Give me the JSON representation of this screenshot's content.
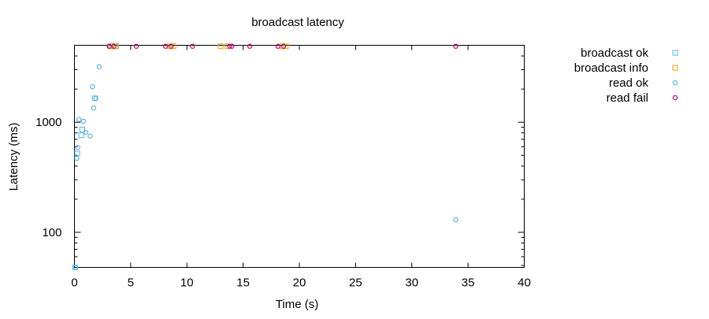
{
  "chart_data": {
    "type": "scatter",
    "title": "broadcast latency",
    "xlabel": "Time (s)",
    "ylabel": "Latency (ms)",
    "xlim": [
      0,
      40
    ],
    "ylim": [
      48,
      5000
    ],
    "yscale": "log",
    "xticks": [
      "0",
      "5",
      "10",
      "15",
      "20",
      "25",
      "30",
      "35",
      "40"
    ],
    "yticks": [
      "100",
      "1000"
    ],
    "grid": false,
    "legend_position": "top-right outside",
    "series": [
      {
        "name": "broadcast ok",
        "marker": "square",
        "color": "#56b4e9",
        "points": [
          [
            0.05,
            48
          ],
          [
            0.25,
            520
          ],
          [
            0.6,
            760
          ],
          [
            0.7,
            860
          ],
          [
            1.8,
            1650
          ],
          [
            3.3,
            4900
          ],
          [
            3.6,
            4900
          ]
        ]
      },
      {
        "name": "broadcast info",
        "marker": "square",
        "color": "#e69f00",
        "points": [
          [
            3.2,
            4900
          ],
          [
            3.7,
            4900
          ],
          [
            8.5,
            4900
          ],
          [
            8.8,
            4900
          ],
          [
            13.0,
            4900
          ],
          [
            13.6,
            4900
          ],
          [
            18.5,
            4900
          ],
          [
            18.8,
            4900
          ]
        ]
      },
      {
        "name": "read ok",
        "marker": "circle",
        "color": "#56b4e9",
        "points": [
          [
            0.1,
            48
          ],
          [
            0.2,
            470
          ],
          [
            0.3,
            590
          ],
          [
            0.4,
            1060
          ],
          [
            0.8,
            1020
          ],
          [
            1.0,
            810
          ],
          [
            1.4,
            750
          ],
          [
            1.6,
            2100
          ],
          [
            1.7,
            1350
          ],
          [
            1.9,
            1650
          ],
          [
            2.2,
            3200
          ],
          [
            33.9,
            130
          ]
        ]
      },
      {
        "name": "read fail",
        "marker": "circle",
        "color": "#cc0066",
        "points": [
          [
            3.1,
            4900
          ],
          [
            3.5,
            4900
          ],
          [
            5.5,
            4900
          ],
          [
            8.1,
            4900
          ],
          [
            8.6,
            4900
          ],
          [
            10.5,
            4900
          ],
          [
            13.8,
            4900
          ],
          [
            14.0,
            4900
          ],
          [
            15.6,
            4900
          ],
          [
            18.1,
            4900
          ],
          [
            18.6,
            4900
          ],
          [
            33.9,
            4900
          ]
        ]
      }
    ]
  }
}
